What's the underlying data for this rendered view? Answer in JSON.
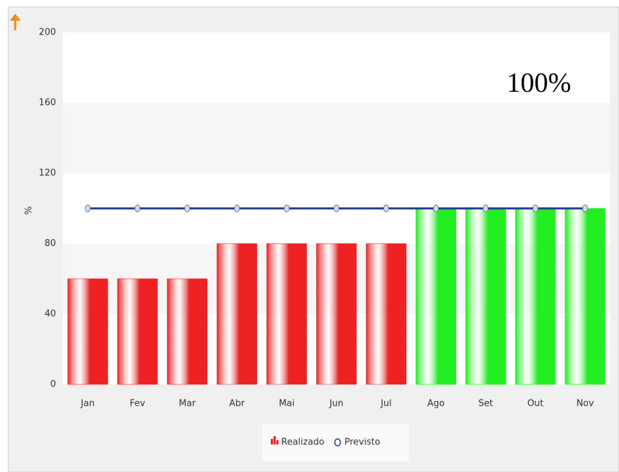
{
  "chart_data": {
    "type": "bar",
    "annotation": "100%",
    "ylabel": "%",
    "categories": [
      "Jan",
      "Fev",
      "Mar",
      "Abr",
      "Mai",
      "Jun",
      "Jul",
      "Ago",
      "Set",
      "Out",
      "Nov"
    ],
    "series": [
      {
        "name": "Realizado",
        "type": "bar",
        "values": [
          60,
          60,
          60,
          80,
          80,
          80,
          80,
          100,
          100,
          100,
          100
        ],
        "colors": [
          "#ee2222",
          "#ee2222",
          "#ee2222",
          "#ee2222",
          "#ee2222",
          "#ee2222",
          "#ee2222",
          "#22ee22",
          "#22ee22",
          "#22ee22",
          "#22ee22"
        ]
      },
      {
        "name": "Previsto",
        "type": "line",
        "color": "#1f3a8f",
        "values": [
          100,
          100,
          100,
          100,
          100,
          100,
          100,
          100,
          100,
          100,
          100
        ]
      }
    ],
    "ylim": [
      0,
      200
    ],
    "yticks": [
      0,
      40,
      80,
      120,
      160,
      200
    ],
    "grid": "bands",
    "legend": "bottom"
  }
}
